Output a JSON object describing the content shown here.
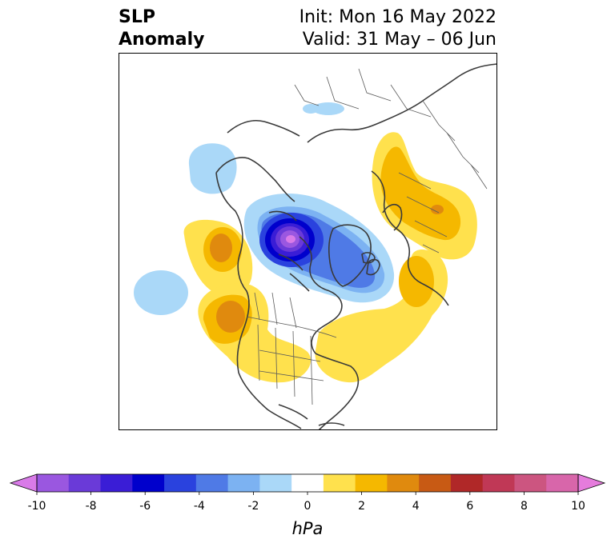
{
  "title": {
    "variable_line1": "SLP",
    "variable_line2": "Anomaly",
    "init": "Init: Mon 16 May 2022",
    "valid": "Valid: 31 May – 06 Jun"
  },
  "colorbar": {
    "unit": "hPa",
    "min": -10,
    "max": 10,
    "ticks": [
      "-10",
      "-8",
      "-6",
      "-4",
      "-2",
      "0",
      "2",
      "4",
      "6",
      "8",
      "10"
    ],
    "colors": {
      "under": "#d97be8",
      "bins": [
        "#9a57e0",
        "#6a3ad8",
        "#3a1dd6",
        "#0000cc",
        "#2a42de",
        "#4f7ae6",
        "#7cb2f2",
        "#aad8f8",
        "#ffffff",
        "#ffe14d",
        "#f5b800",
        "#e08a0e",
        "#c85a14",
        "#b02828",
        "#c03856",
        "#cc5580",
        "#d866aa"
      ],
      "over": "#e57cdc"
    }
  },
  "map": {
    "projection": "north-polar-stereographic",
    "features": [
      "coastlines",
      "country-borders",
      "state-borders"
    ]
  }
}
